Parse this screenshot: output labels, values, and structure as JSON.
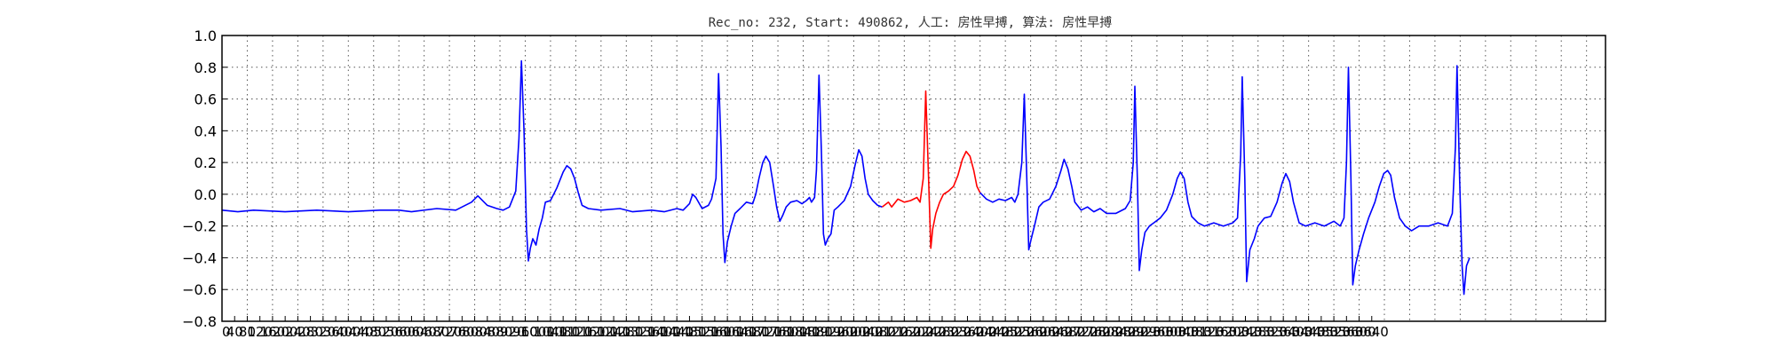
{
  "chart_data": {
    "type": "line",
    "title": "Rec_no: 232, Start: 490862, 人工: 房性早搏, 算法: 房性早搏",
    "xlabel": "",
    "ylabel": "",
    "xlim": [
      0,
      4380
    ],
    "ylim": [
      -0.8,
      1.0
    ],
    "grid": true,
    "yticks": [
      "1.0",
      "0.8",
      "0.6",
      "0.4",
      "0.2",
      "0.0",
      "−0.2",
      "−0.4",
      "−0.6",
      "−0.8"
    ],
    "ytick_values": [
      1.0,
      0.8,
      0.6,
      0.4,
      0.2,
      0.0,
      -0.2,
      -0.4,
      -0.6,
      -0.8
    ],
    "xticks": [
      "0",
      "40",
      "80",
      "120",
      "160",
      "200",
      "240",
      "280",
      "320",
      "360",
      "400",
      "440",
      "480",
      "520",
      "560",
      "600",
      "640",
      "680",
      "720",
      "760",
      "800",
      "840",
      "880",
      "920",
      "960",
      "1000",
      "1040",
      "1080",
      "1120",
      "1160",
      "1200",
      "1240",
      "1280",
      "1320",
      "1360",
      "1400",
      "1440",
      "1480",
      "1520",
      "1560",
      "1600",
      "1640",
      "1680",
      "1720",
      "1760",
      "1800",
      "1840",
      "1880",
      "1920",
      "1960",
      "2000",
      "2040",
      "2080",
      "2120",
      "2160",
      "2200",
      "2240",
      "2280",
      "2320",
      "2360",
      "2400",
      "2440",
      "2480",
      "2520",
      "2560",
      "2600",
      "2640",
      "2680",
      "2720",
      "2760",
      "2800",
      "2840",
      "2880",
      "2920",
      "2960",
      "3000",
      "3040",
      "3080",
      "3120",
      "3160",
      "3200",
      "3240",
      "3280",
      "3320",
      "3360",
      "3400",
      "3440",
      "3480",
      "3520",
      "3560",
      "3600",
      "3640"
    ],
    "xtick_step": 40,
    "grid_x_step": 80,
    "series": [
      {
        "color": "#0000ff",
        "points": [
          [
            0,
            -0.1
          ],
          [
            50,
            -0.11
          ],
          [
            100,
            -0.1
          ],
          [
            200,
            -0.11
          ],
          [
            300,
            -0.1
          ],
          [
            400,
            -0.11
          ],
          [
            500,
            -0.1
          ],
          [
            560,
            -0.1
          ],
          [
            600,
            -0.11
          ],
          [
            680,
            -0.09
          ],
          [
            740,
            -0.1
          ],
          [
            790,
            -0.05
          ],
          [
            810,
            -0.01
          ],
          [
            840,
            -0.07
          ],
          [
            870,
            -0.09
          ],
          [
            890,
            -0.1
          ],
          [
            910,
            -0.08
          ],
          [
            930,
            0.02
          ],
          [
            940,
            0.35
          ],
          [
            948,
            0.84
          ],
          [
            956,
            0.4
          ],
          [
            964,
            -0.22
          ],
          [
            970,
            -0.42
          ],
          [
            976,
            -0.34
          ],
          [
            984,
            -0.28
          ],
          [
            994,
            -0.32
          ],
          [
            1004,
            -0.22
          ],
          [
            1014,
            -0.15
          ],
          [
            1024,
            -0.05
          ],
          [
            1040,
            -0.04
          ],
          [
            1060,
            0.04
          ],
          [
            1080,
            0.14
          ],
          [
            1092,
            0.18
          ],
          [
            1104,
            0.16
          ],
          [
            1116,
            0.1
          ],
          [
            1128,
            0.01
          ],
          [
            1140,
            -0.07
          ],
          [
            1160,
            -0.09
          ],
          [
            1200,
            -0.1
          ],
          [
            1260,
            -0.09
          ],
          [
            1300,
            -0.11
          ],
          [
            1360,
            -0.1
          ],
          [
            1400,
            -0.11
          ],
          [
            1440,
            -0.09
          ],
          [
            1460,
            -0.1
          ],
          [
            1480,
            -0.06
          ],
          [
            1490,
            0.0
          ],
          [
            1500,
            -0.02
          ],
          [
            1520,
            -0.09
          ],
          [
            1540,
            -0.07
          ],
          [
            1550,
            -0.03
          ],
          [
            1564,
            0.1
          ],
          [
            1572,
            0.76
          ],
          [
            1580,
            0.3
          ],
          [
            1586,
            -0.25
          ],
          [
            1592,
            -0.43
          ],
          [
            1600,
            -0.3
          ],
          [
            1612,
            -0.2
          ],
          [
            1624,
            -0.12
          ],
          [
            1640,
            -0.09
          ],
          [
            1660,
            -0.05
          ],
          [
            1680,
            -0.06
          ],
          [
            1690,
            0.0
          ],
          [
            1700,
            0.1
          ],
          [
            1712,
            0.2
          ],
          [
            1722,
            0.24
          ],
          [
            1734,
            0.2
          ],
          [
            1746,
            0.05
          ],
          [
            1756,
            -0.08
          ],
          [
            1766,
            -0.17
          ],
          [
            1776,
            -0.13
          ],
          [
            1786,
            -0.08
          ],
          [
            1800,
            -0.05
          ],
          [
            1820,
            -0.04
          ],
          [
            1836,
            -0.06
          ],
          [
            1850,
            -0.04
          ],
          [
            1860,
            -0.02
          ],
          [
            1866,
            -0.05
          ],
          [
            1876,
            -0.02
          ],
          [
            1882,
            0.15
          ],
          [
            1890,
            0.75
          ],
          [
            1898,
            0.25
          ],
          [
            1904,
            -0.25
          ],
          [
            1910,
            -0.32
          ],
          [
            1918,
            -0.28
          ],
          [
            1928,
            -0.25
          ],
          [
            1938,
            -0.1
          ],
          [
            1950,
            -0.08
          ],
          [
            1970,
            -0.04
          ],
          [
            1990,
            0.05
          ],
          [
            2004,
            0.18
          ],
          [
            2016,
            0.28
          ],
          [
            2026,
            0.24
          ],
          [
            2036,
            0.1
          ],
          [
            2046,
            0.0
          ],
          [
            2060,
            -0.04
          ],
          [
            2076,
            -0.07
          ],
          [
            2090,
            -0.08
          ]
        ],
        "name": ""
      },
      {
        "color": "#ff0000",
        "points": [
          [
            2090,
            -0.08
          ],
          [
            2110,
            -0.05
          ],
          [
            2120,
            -0.08
          ],
          [
            2140,
            -0.03
          ],
          [
            2160,
            -0.05
          ],
          [
            2180,
            -0.04
          ],
          [
            2200,
            -0.02
          ],
          [
            2210,
            -0.05
          ],
          [
            2220,
            0.1
          ],
          [
            2228,
            0.65
          ],
          [
            2236,
            0.15
          ],
          [
            2244,
            -0.34
          ],
          [
            2250,
            -0.22
          ],
          [
            2260,
            -0.12
          ],
          [
            2272,
            -0.05
          ],
          [
            2284,
            0.0
          ],
          [
            2300,
            0.02
          ],
          [
            2316,
            0.05
          ],
          [
            2330,
            0.12
          ],
          [
            2344,
            0.22
          ],
          [
            2356,
            0.27
          ],
          [
            2368,
            0.24
          ],
          [
            2380,
            0.15
          ],
          [
            2390,
            0.05
          ],
          [
            2400,
            0.01
          ]
        ],
        "name": ""
      },
      {
        "color": "#0000ff",
        "points": [
          [
            2400,
            0.01
          ],
          [
            2420,
            -0.03
          ],
          [
            2440,
            -0.05
          ],
          [
            2460,
            -0.03
          ],
          [
            2480,
            -0.04
          ],
          [
            2500,
            -0.02
          ],
          [
            2510,
            -0.05
          ],
          [
            2520,
            0.0
          ],
          [
            2532,
            0.2
          ],
          [
            2540,
            0.63
          ],
          [
            2548,
            0.1
          ],
          [
            2554,
            -0.35
          ],
          [
            2562,
            -0.28
          ],
          [
            2572,
            -0.2
          ],
          [
            2586,
            -0.08
          ],
          [
            2600,
            -0.05
          ],
          [
            2620,
            -0.03
          ],
          [
            2640,
            0.05
          ],
          [
            2656,
            0.15
          ],
          [
            2666,
            0.22
          ],
          [
            2678,
            0.16
          ],
          [
            2690,
            0.05
          ],
          [
            2700,
            -0.05
          ],
          [
            2720,
            -0.1
          ],
          [
            2740,
            -0.08
          ],
          [
            2760,
            -0.11
          ],
          [
            2780,
            -0.09
          ],
          [
            2800,
            -0.12
          ],
          [
            2830,
            -0.12
          ],
          [
            2860,
            -0.09
          ],
          [
            2875,
            -0.04
          ],
          [
            2885,
            0.2
          ],
          [
            2890,
            0.68
          ],
          [
            2898,
            0.1
          ],
          [
            2904,
            -0.48
          ],
          [
            2912,
            -0.35
          ],
          [
            2922,
            -0.24
          ],
          [
            2936,
            -0.2
          ],
          [
            2950,
            -0.18
          ],
          [
            2970,
            -0.15
          ],
          [
            2990,
            -0.1
          ],
          [
            3010,
            0.0
          ],
          [
            3024,
            0.1
          ],
          [
            3034,
            0.14
          ],
          [
            3046,
            0.1
          ],
          [
            3058,
            -0.05
          ],
          [
            3070,
            -0.14
          ],
          [
            3090,
            -0.18
          ],
          [
            3110,
            -0.2
          ],
          [
            3140,
            -0.18
          ],
          [
            3170,
            -0.2
          ],
          [
            3200,
            -0.18
          ],
          [
            3215,
            -0.15
          ],
          [
            3225,
            0.25
          ],
          [
            3230,
            0.74
          ],
          [
            3238,
            0.1
          ],
          [
            3244,
            -0.55
          ],
          [
            3254,
            -0.35
          ],
          [
            3268,
            -0.28
          ],
          [
            3280,
            -0.2
          ],
          [
            3300,
            -0.15
          ],
          [
            3320,
            -0.14
          ],
          [
            3340,
            -0.05
          ],
          [
            3356,
            0.07
          ],
          [
            3368,
            0.13
          ],
          [
            3380,
            0.08
          ],
          [
            3392,
            -0.05
          ],
          [
            3410,
            -0.18
          ],
          [
            3430,
            -0.2
          ],
          [
            3460,
            -0.18
          ],
          [
            3490,
            -0.2
          ],
          [
            3520,
            -0.17
          ],
          [
            3540,
            -0.2
          ],
          [
            3552,
            -0.15
          ],
          [
            3560,
            0.2
          ],
          [
            3566,
            0.8
          ],
          [
            3574,
            0.1
          ],
          [
            3580,
            -0.57
          ],
          [
            3588,
            -0.45
          ],
          [
            3600,
            -0.35
          ],
          [
            3614,
            -0.25
          ],
          [
            3630,
            -0.15
          ],
          [
            3650,
            -0.05
          ],
          [
            3664,
            0.05
          ],
          [
            3678,
            0.13
          ],
          [
            3690,
            0.15
          ],
          [
            3700,
            0.12
          ],
          [
            3712,
            -0.02
          ],
          [
            3728,
            -0.15
          ],
          [
            3746,
            -0.2
          ],
          [
            3766,
            -0.23
          ],
          [
            3790,
            -0.2
          ],
          [
            3820,
            -0.2
          ],
          [
            3850,
            -0.18
          ],
          [
            3880,
            -0.2
          ],
          [
            3895,
            -0.12
          ],
          [
            3905,
            0.3
          ],
          [
            3910,
            0.81
          ],
          [
            3918,
            0.1
          ],
          [
            3926,
            -0.45
          ],
          [
            3932,
            -0.63
          ],
          [
            3940,
            -0.45
          ],
          [
            3950,
            -0.4
          ]
        ],
        "name": ""
      }
    ]
  }
}
